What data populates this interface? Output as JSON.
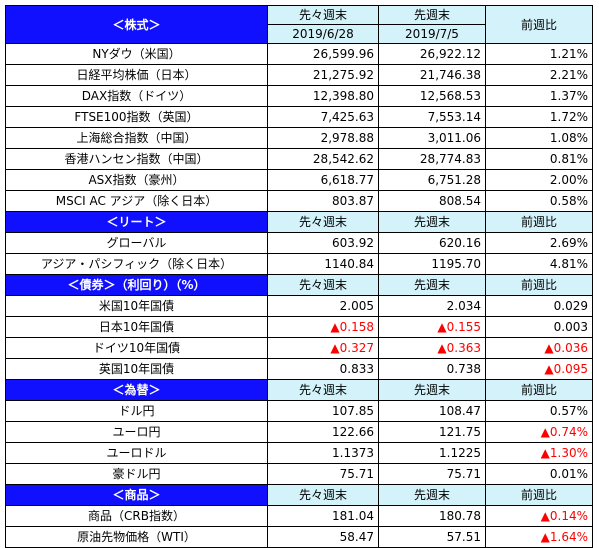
{
  "stocks": {
    "header": "＜株式＞",
    "col_prev_week": "先々週末",
    "col_last_week": "先週末",
    "col_change": "前週比",
    "date_prev_week": "2019/6/28",
    "date_last_week": "2019/7/5",
    "rows": [
      {
        "label": "NYダウ（米国）",
        "prev": "26,599.96",
        "last": "26,922.12",
        "change": "1.21%"
      },
      {
        "label": "日経平均株価（日本）",
        "prev": "21,275.92",
        "last": "21,746.38",
        "change": "2.21%"
      },
      {
        "label": "DAX指数（ドイツ）",
        "prev": "12,398.80",
        "last": "12,568.53",
        "change": "1.37%"
      },
      {
        "label": "FTSE100指数（英国）",
        "prev": "7,425.63",
        "last": "7,553.14",
        "change": "1.72%"
      },
      {
        "label": "上海総合指数（中国）",
        "prev": "2,978.88",
        "last": "3,011.06",
        "change": "1.08%"
      },
      {
        "label": "香港ハンセン指数（中国）",
        "prev": "28,542.62",
        "last": "28,774.83",
        "change": "0.81%"
      },
      {
        "label": "ASX指数（豪州）",
        "prev": "6,618.77",
        "last": "6,751.28",
        "change": "2.00%"
      },
      {
        "label": "MSCI AC アジア（除く日本）",
        "prev": "803.87",
        "last": "808.54",
        "change": "0.58%"
      }
    ]
  },
  "reit": {
    "header": "＜リート＞",
    "col_prev_week": "先々週末",
    "col_last_week": "先週末",
    "col_change": "前週比",
    "rows": [
      {
        "label": "グローバル",
        "prev": "603.92",
        "last": "620.16",
        "change": "2.69%"
      },
      {
        "label": "アジア・パシフィック（除く日本）",
        "prev": "1140.84",
        "last": "1195.70",
        "change": "4.81%"
      }
    ]
  },
  "bonds": {
    "header": "＜債券＞（利回り）（%）",
    "col_prev_week": "先々週末",
    "col_last_week": "先週末",
    "col_change": "前週比",
    "rows": [
      {
        "label": "米国10年国債",
        "prev": "2.005",
        "last": "2.034",
        "change": "0.029"
      },
      {
        "label": "日本10年国債",
        "prev": "▲0.158",
        "last": "▲0.155",
        "change": "0.003"
      },
      {
        "label": "ドイツ10年国債",
        "prev": "▲0.327",
        "last": "▲0.363",
        "change": "▲0.036"
      },
      {
        "label": "英国10年国債",
        "prev": "0.833",
        "last": "0.738",
        "change": "▲0.095"
      }
    ]
  },
  "fx": {
    "header": "＜為替＞",
    "col_prev_week": "先々週末",
    "col_last_week": "先週末",
    "col_change": "前週比",
    "rows": [
      {
        "label": "ドル円",
        "prev": "107.85",
        "last": "108.47",
        "change": "0.57%"
      },
      {
        "label": "ユーロ円",
        "prev": "122.66",
        "last": "121.75",
        "change": "▲0.74%"
      },
      {
        "label": "ユーロドル",
        "prev": "1.1373",
        "last": "1.1225",
        "change": "▲1.30%"
      },
      {
        "label": "豪ドル円",
        "prev": "75.71",
        "last": "75.71",
        "change": "0.01%"
      }
    ]
  },
  "commodities": {
    "header": "＜商品＞",
    "col_prev_week": "先々週末",
    "col_last_week": "先週末",
    "col_change": "前週比",
    "rows": [
      {
        "label": "商品（CRB指数）",
        "prev": "181.04",
        "last": "180.78",
        "change": "▲0.14%"
      },
      {
        "label": "原油先物価格（WTI）",
        "prev": "58.47",
        "last": "57.51",
        "change": "▲1.64%"
      }
    ]
  },
  "colors": {
    "section_header_bg": "#1010ff",
    "column_header_bg": "#d3f2f9",
    "negative_text": "#ff0000"
  }
}
